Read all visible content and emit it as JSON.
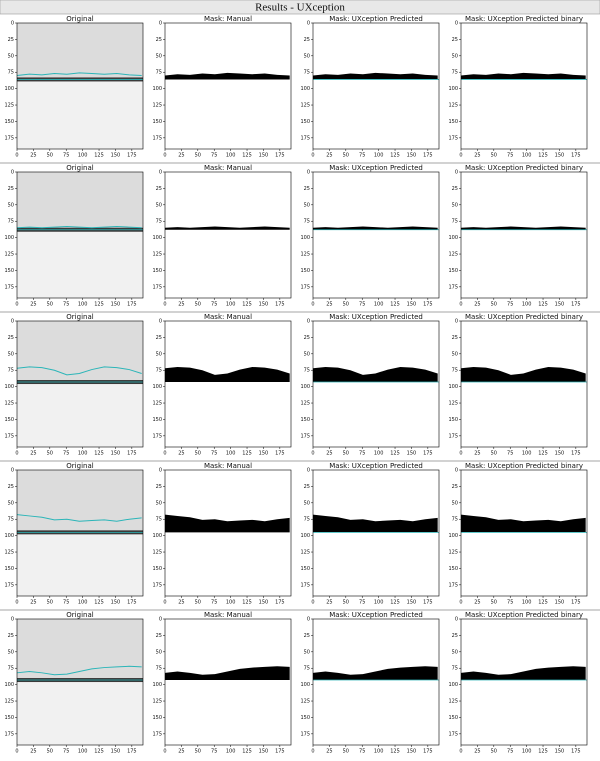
{
  "header": {
    "title": "Results - UXception"
  },
  "columns": [
    "Original",
    "Mask: Manual",
    "Mask: UXception Predicted",
    "Mask: UXception Predicted binary"
  ],
  "rows": 5,
  "axes": {
    "xlim": [
      0,
      192
    ],
    "ylim": [
      0,
      192
    ],
    "xticks": [
      0,
      25,
      50,
      75,
      100,
      125,
      150,
      175
    ],
    "yticks": [
      0,
      25,
      50,
      75,
      100,
      125,
      150,
      175
    ]
  }
}
